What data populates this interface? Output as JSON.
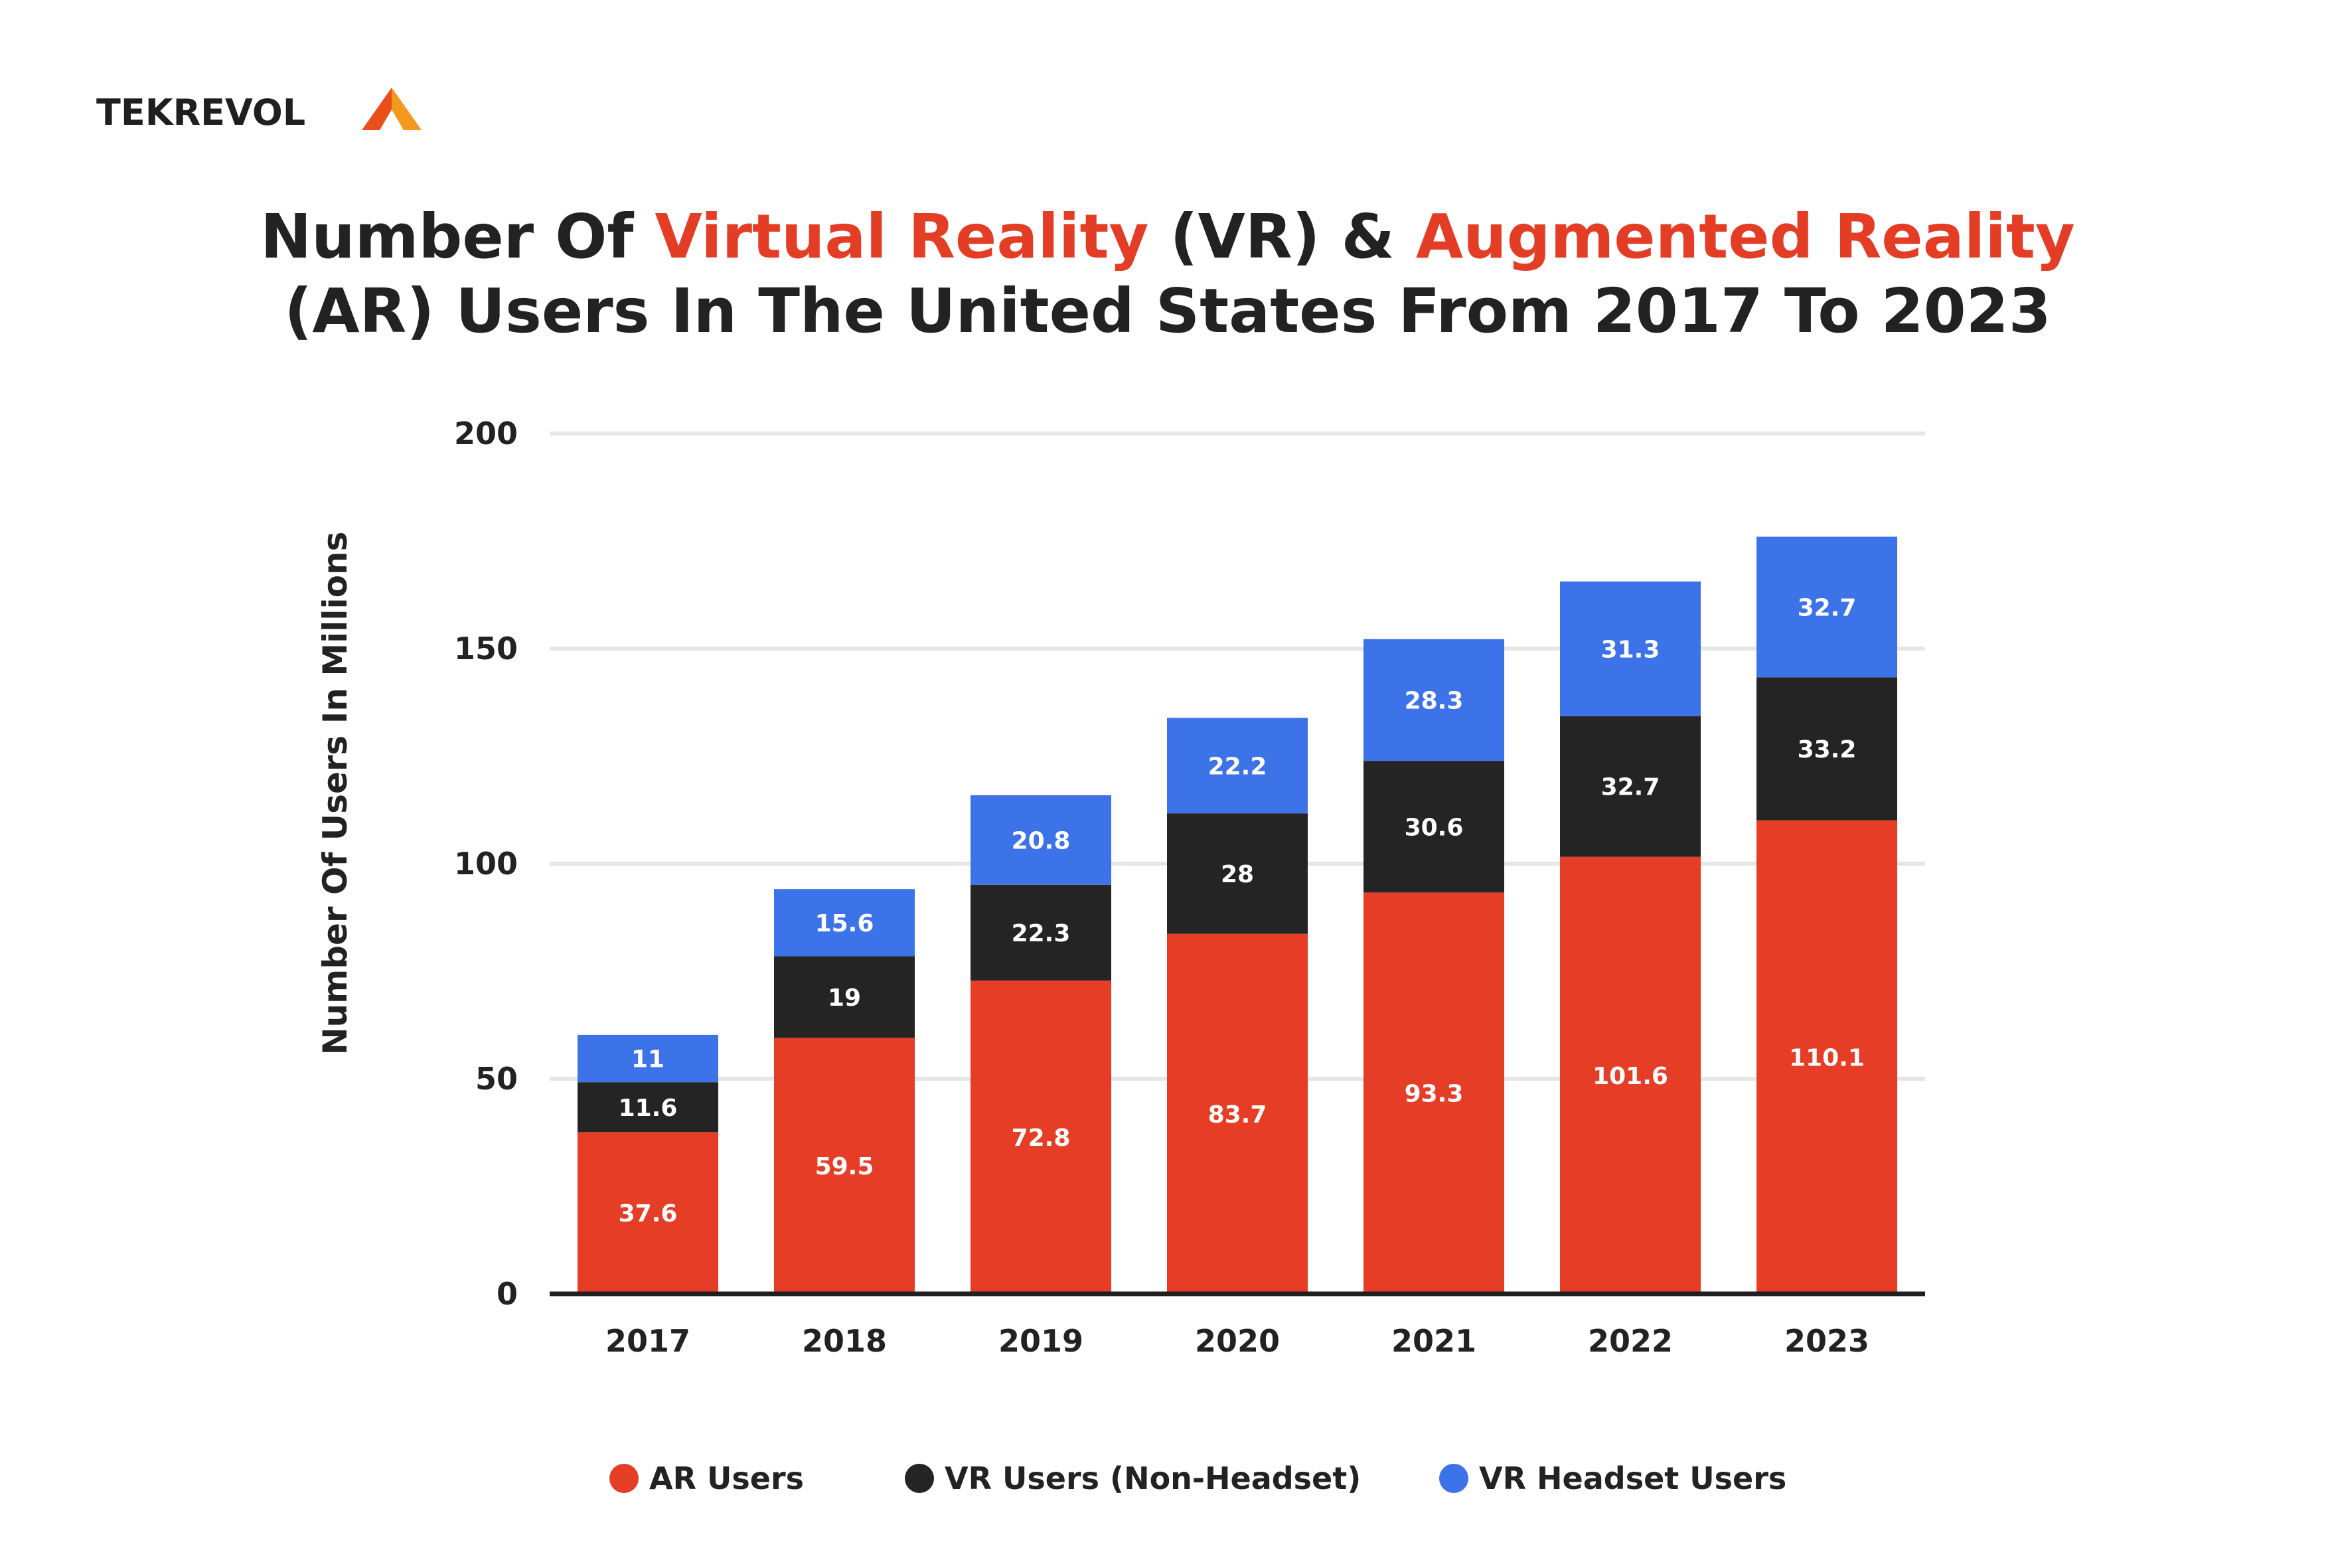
{
  "brand": {
    "logo_text": "TEKREVOL"
  },
  "title": {
    "line1_a": "Number Of ",
    "line1_b": "Virtual Reality",
    "line1_c": " (VR) & ",
    "line1_d": "Augmented Reality",
    "line2": "(AR) Users In The United States From 2017 To 2023"
  },
  "colors": {
    "ar": "#e63d26",
    "vr_non_headset": "#242424",
    "vr_headset": "#3d73e8",
    "text": "#222222",
    "accent": "#e43d26",
    "grid": "#e6e6e6"
  },
  "chart_data": {
    "type": "bar",
    "stacked": true,
    "ylabel": "Number Of Users In Millions",
    "xlabel": "",
    "ylim": [
      0,
      200
    ],
    "yticks": [
      0,
      50,
      100,
      150,
      200
    ],
    "grid": true,
    "legend_position": "bottom",
    "categories": [
      "2017",
      "2018",
      "2019",
      "2020",
      "2021",
      "2022",
      "2023"
    ],
    "series": [
      {
        "name": "AR Users",
        "values": [
          37.6,
          59.5,
          72.8,
          83.7,
          93.3,
          101.6,
          110.1
        ],
        "labels": [
          "37.6",
          "59.5",
          "72.8",
          "83.7",
          "93.3",
          "101.6",
          "110.1"
        ]
      },
      {
        "name": "VR Users (Non-Headset)",
        "values": [
          11.6,
          19,
          22.3,
          28,
          30.6,
          32.7,
          33.2
        ],
        "labels": [
          "11.6",
          "19",
          "22.3",
          "28",
          "30.6",
          "32.7",
          "33.2"
        ]
      },
      {
        "name": "VR Headset Users",
        "values": [
          11,
          15.6,
          20.8,
          22.2,
          28.3,
          31.3,
          32.7
        ],
        "labels": [
          "11",
          "15.6",
          "20.8",
          "22.2",
          "28.3",
          "31.3",
          "32.7"
        ]
      }
    ]
  }
}
